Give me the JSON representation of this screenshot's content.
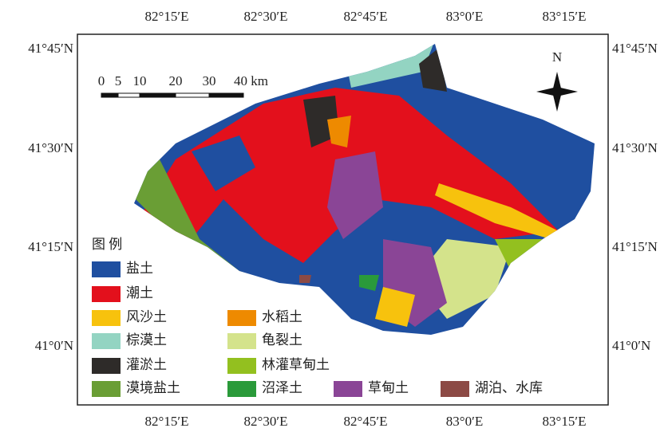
{
  "map": {
    "lon_labels": [
      "82°15′E",
      "82°30′E",
      "82°45′E",
      "83°0′E",
      "83°15′E"
    ],
    "lat_labels": [
      "41°45′N",
      "41°30′N",
      "41°15′N",
      "41°0′N"
    ],
    "scale_labels": [
      "0",
      "5",
      "10",
      "20",
      "30",
      "40 km"
    ],
    "north": "N",
    "legend": {
      "title": "图 例",
      "items": [
        {
          "label": "盐土",
          "color": "#1f4fa0"
        },
        {
          "label": "潮土",
          "color": "#e3101c"
        },
        {
          "label": "风沙土",
          "color": "#f7c20d"
        },
        {
          "label": "棕漠土",
          "color": "#93d4c2"
        },
        {
          "label": "灌淤土",
          "color": "#2e2b29"
        },
        {
          "label": "漠境盐土",
          "color": "#6a9e35"
        },
        {
          "label": "水稻土",
          "color": "#ee8a00"
        },
        {
          "label": "龟裂土",
          "color": "#d4e38b"
        },
        {
          "label": "林灌草甸土",
          "color": "#93c01f"
        },
        {
          "label": "沼泽土",
          "color": "#2a9a3a"
        },
        {
          "label": "草甸土",
          "color": "#8a4596"
        },
        {
          "label": "湖泊、水库",
          "color": "#8c4a45"
        }
      ]
    }
  }
}
